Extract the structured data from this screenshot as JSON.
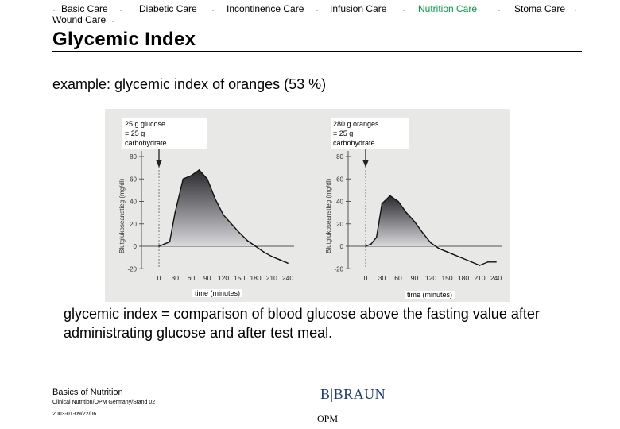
{
  "nav": {
    "items": [
      {
        "label": "Basic Care"
      },
      {
        "label": "Diabetic Care"
      },
      {
        "label": "Incontinence Care"
      },
      {
        "label": "Infusion Care"
      },
      {
        "label": "Nutrition Care"
      },
      {
        "label": "Stoma Care"
      },
      {
        "label": "Wound Care"
      }
    ],
    "separator": "·",
    "active_color": "#00a040"
  },
  "title": "Glycemic Index",
  "example": "example: glycemic index of oranges (53 %)",
  "figure": {
    "left_label": [
      "25 g glucose",
      "= 25 g",
      "carbohydrate"
    ],
    "right_label": [
      "280 g oranges",
      "= 25 g",
      "carbohydrate"
    ],
    "ylabel": "Blutglukoseanstieg (mg/dl)",
    "time_label": "time (minutes)"
  },
  "chart_data": [
    {
      "type": "area",
      "xlabel": "time (minutes)",
      "ylabel": "Blutglukoseanstieg (mg/dl)",
      "annotation": "25 g glucose = 25 g carbohydrate",
      "x_ticks": [
        0,
        30,
        60,
        90,
        120,
        150,
        180,
        210,
        240
      ],
      "y_ticks": [
        -20,
        0,
        20,
        40,
        60,
        80
      ],
      "xlim": [
        0,
        240
      ],
      "ylim": [
        -20,
        85
      ],
      "x": [
        0,
        10,
        20,
        30,
        45,
        60,
        75,
        90,
        105,
        120,
        135,
        150,
        165,
        180,
        195,
        210,
        225,
        240
      ],
      "values": [
        0,
        2,
        4,
        30,
        60,
        63,
        68,
        60,
        42,
        28,
        20,
        12,
        5,
        0,
        -5,
        -9,
        -12,
        -15
      ]
    },
    {
      "type": "area",
      "xlabel": "time (minutes)",
      "ylabel": "Blutglukoseanstieg (mg/dl)",
      "annotation": "280 g oranges = 25 g carbohydrate",
      "x_ticks": [
        0,
        30,
        60,
        90,
        120,
        150,
        180,
        210,
        240
      ],
      "y_ticks": [
        -20,
        0,
        20,
        40,
        60,
        80
      ],
      "xlim": [
        0,
        240
      ],
      "ylim": [
        -20,
        85
      ],
      "x": [
        0,
        10,
        20,
        30,
        45,
        60,
        75,
        90,
        105,
        120,
        135,
        150,
        165,
        180,
        195,
        210,
        225,
        240
      ],
      "values": [
        0,
        2,
        8,
        38,
        45,
        40,
        30,
        22,
        12,
        3,
        -2,
        -5,
        -8,
        -11,
        -14,
        -17,
        -14,
        -14
      ]
    }
  ],
  "description": "glycemic index = comparison of blood glucose above the fasting value after administrating glucose and after test meal.",
  "footer": {
    "title": "Basics of Nutrition",
    "line1": "Clinical Nutrition/OPM Germany/Stand 02",
    "line2": "2003-01-09/22/06",
    "brand": "B|BRAUN",
    "dept": "OPM"
  }
}
